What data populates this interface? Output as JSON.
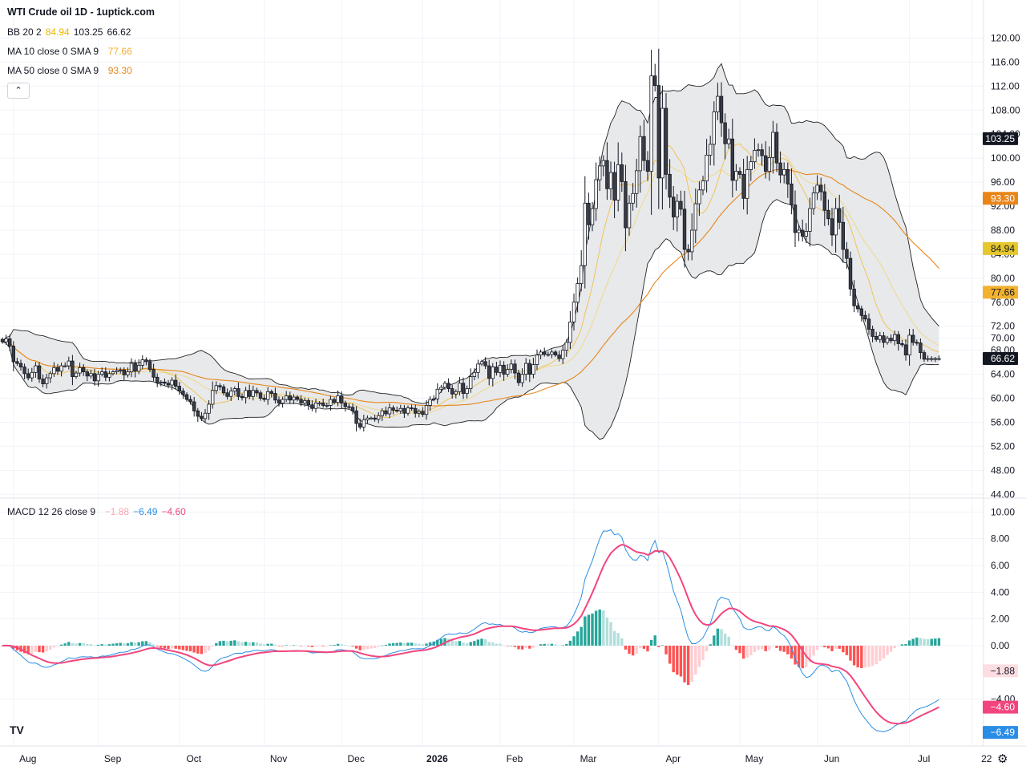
{
  "title": "WTI Crude oil  1D - 1uptick.com",
  "indicators": {
    "bb": {
      "label": "BB 20 2",
      "basis": "84.94",
      "upper": "103.25",
      "lower": "66.62",
      "basis_color": "#e6b800",
      "text_color": "#131722"
    },
    "ma10": {
      "label": "MA 10 close 0 SMA 9",
      "value": "77.66",
      "color": "#f2b12f"
    },
    "ma50": {
      "label": "MA 50 close 0 SMA 9",
      "value": "93.30",
      "color": "#e8861a"
    },
    "macd": {
      "label": "MACD 12 26 close 9",
      "hist": "−1.88",
      "macd": "−6.49",
      "signal": "−4.60",
      "hist_color": "#f7a7b0",
      "macd_color": "#2a8de5",
      "signal_color": "#f2457d"
    }
  },
  "collapse_icon": "chevron-up-icon",
  "logo_text": "TV",
  "settings_icon": "gear-icon",
  "price_badges": [
    {
      "text": "103.25",
      "value": 103.25,
      "bg": "#131722",
      "fg": "#ffffff"
    },
    {
      "text": "93.30",
      "value": 93.3,
      "bg": "#e8861a",
      "fg": "#ffffff"
    },
    {
      "text": "84.94",
      "value": 84.94,
      "bg": "#e6c72d",
      "fg": "#131722"
    },
    {
      "text": "77.66",
      "value": 77.66,
      "bg": "#f2b12f",
      "fg": "#131722"
    },
    {
      "text": "66.62",
      "value": 66.62,
      "bg": "#131722",
      "fg": "#ffffff"
    }
  ],
  "macd_badges": [
    {
      "text": "−1.88",
      "value": -1.88,
      "bg": "#fcdde1",
      "fg": "#131722"
    },
    {
      "text": "−4.60",
      "value": -4.6,
      "bg": "#f2457d",
      "fg": "#ffffff"
    },
    {
      "text": "−6.49",
      "value": -6.49,
      "bg": "#2a8de5",
      "fg": "#ffffff"
    }
  ],
  "chart_data": {
    "type": "candlestick",
    "y_ticks": [
      "120.00",
      "116.00",
      "112.00",
      "108.00",
      "104.00",
      "100.00",
      "96.00",
      "92.00",
      "88.00",
      "84.00",
      "80.00",
      "76.00",
      "72.00",
      "70.00",
      "68.00",
      "64.00",
      "60.00",
      "56.00",
      "52.00",
      "48.00",
      "44.00"
    ],
    "y_tick_values": [
      120,
      116,
      112,
      108,
      104,
      100,
      96,
      92,
      88,
      84,
      80,
      76,
      72,
      70,
      68,
      64,
      60,
      56,
      52,
      48,
      44
    ],
    "ylim": [
      43.5,
      121.0
    ],
    "macd_ticks": [
      "10.00",
      "8.00",
      "6.00",
      "4.00",
      "2.00",
      "0.00",
      "−4.00"
    ],
    "macd_tick_values": [
      10,
      8,
      6,
      4,
      2,
      0,
      -4
    ],
    "macd_ylim": [
      -7.5,
      10.5
    ],
    "x_labels": [
      {
        "text": "Aug",
        "bar": 3
      },
      {
        "text": "Sep",
        "bar": 26
      },
      {
        "text": "Oct",
        "bar": 48
      },
      {
        "text": "Nov",
        "bar": 71
      },
      {
        "text": "Dec",
        "bar": 92
      },
      {
        "text": "2026",
        "bar": 114,
        "bold": true
      },
      {
        "text": "Feb",
        "bar": 135
      },
      {
        "text": "Mar",
        "bar": 155
      },
      {
        "text": "Apr",
        "bar": 178
      },
      {
        "text": "May",
        "bar": 200
      },
      {
        "text": "Jun",
        "bar": 221
      },
      {
        "text": "Jul",
        "bar": 246
      },
      {
        "text": "22",
        "bar": 263
      }
    ],
    "close": [
      69.4,
      69.9,
      68.7,
      66.1,
      65.8,
      65.2,
      64.1,
      63.4,
      64.3,
      65.4,
      63.2,
      62.4,
      63.4,
      64.1,
      65.1,
      64.5,
      65.4,
      65.4,
      66.2,
      63.6,
      64.2,
      65.1,
      64.4,
      63.7,
      64.1,
      62.9,
      64.0,
      64.4,
      63.5,
      64.1,
      64.4,
      64.6,
      64.7,
      63.9,
      64.4,
      65.8,
      64.5,
      65.5,
      66.4,
      66.1,
      64.8,
      63.5,
      62.6,
      62.7,
      62.5,
      62.2,
      63.0,
      62.0,
      61.2,
      60.6,
      59.8,
      59.4,
      57.9,
      57.0,
      56.6,
      57.5,
      59.0,
      61.3,
      62.1,
      61.9,
      60.9,
      60.3,
      61.2,
      61.6,
      60.3,
      60.1,
      61.3,
      60.3,
      61.3,
      60.9,
      60.0,
      59.8,
      61.1,
      60.8,
      59.7,
      59.2,
      59.8,
      60.4,
      59.7,
      60.2,
      59.8,
      59.2,
      59.6,
      58.9,
      58.3,
      59.2,
      59.2,
      58.8,
      58.8,
      59.8,
      59.3,
      60.4,
      59.2,
      58.6,
      58.5,
      57.9,
      55.8,
      55.2,
      56.4,
      56.7,
      56.7,
      56.5,
      57.1,
      57.9,
      57.4,
      58.4,
      58.0,
      57.9,
      58.3,
      57.5,
      58.4,
      58.3,
      57.5,
      57.8,
      57.3,
      58.8,
      59.8,
      59.9,
      61.5,
      61.8,
      62.5,
      61.6,
      60.7,
      61.1,
      62.5,
      60.8,
      61.6,
      63.6,
      64.3,
      65.7,
      66.1,
      65.4,
      63.3,
      65.2,
      64.3,
      65.5,
      64.0,
      64.8,
      65.7,
      64.2,
      62.6,
      64.0,
      65.8,
      64.0,
      65.6,
      67.2,
      67.7,
      67.3,
      67.3,
      67.7,
      67.2,
      66.6,
      68.0,
      69.3,
      72.7,
      76.0,
      79.1,
      82.1,
      92.5,
      88.9,
      91.6,
      96.4,
      98.7,
      99.6,
      94.9,
      97.6,
      93.0,
      98.9,
      96.1,
      88.4,
      92.5,
      94.1,
      97.9,
      103.6,
      99.6,
      97.8,
      113.7,
      112.1,
      96.7,
      108.3,
      97.3,
      93.5,
      90.2,
      92.8,
      91.5,
      84.8,
      84.4,
      88.0,
      92.4,
      94.7,
      96.2,
      100.5,
      102.3,
      107.7,
      110.3,
      105.9,
      102.4,
      103.2,
      96.3,
      97.8,
      97.3,
      93.3,
      98.1,
      99.4,
      101.3,
      101.4,
      100.4,
      97.8,
      100.1,
      104.3,
      99.2,
      97.2,
      98.1,
      95.7,
      92.2,
      87.6,
      88.0,
      87.0,
      87.8,
      91.6,
      94.2,
      95.5,
      94.4,
      91.3,
      89.9,
      87.2,
      91.6,
      89.3,
      84.8,
      83.3,
      78.2,
      75.4,
      74.9,
      73.8,
      73.2,
      71.5,
      70.3,
      69.8,
      70.4,
      69.3,
      70.0,
      69.6,
      70.6,
      69.1,
      68.9,
      67.2,
      70.5,
      69.3,
      69.2,
      67.6,
      66.5,
      66.6,
      66.6,
      66.6,
      66.6
    ],
    "ma10_value": 77.66,
    "ma50_value": 93.3,
    "bb_basis": 84.94,
    "bb_upper": 103.25,
    "bb_lower": 66.62,
    "macd_last": {
      "macd": -6.49,
      "signal": -4.6,
      "hist": -1.88
    }
  }
}
